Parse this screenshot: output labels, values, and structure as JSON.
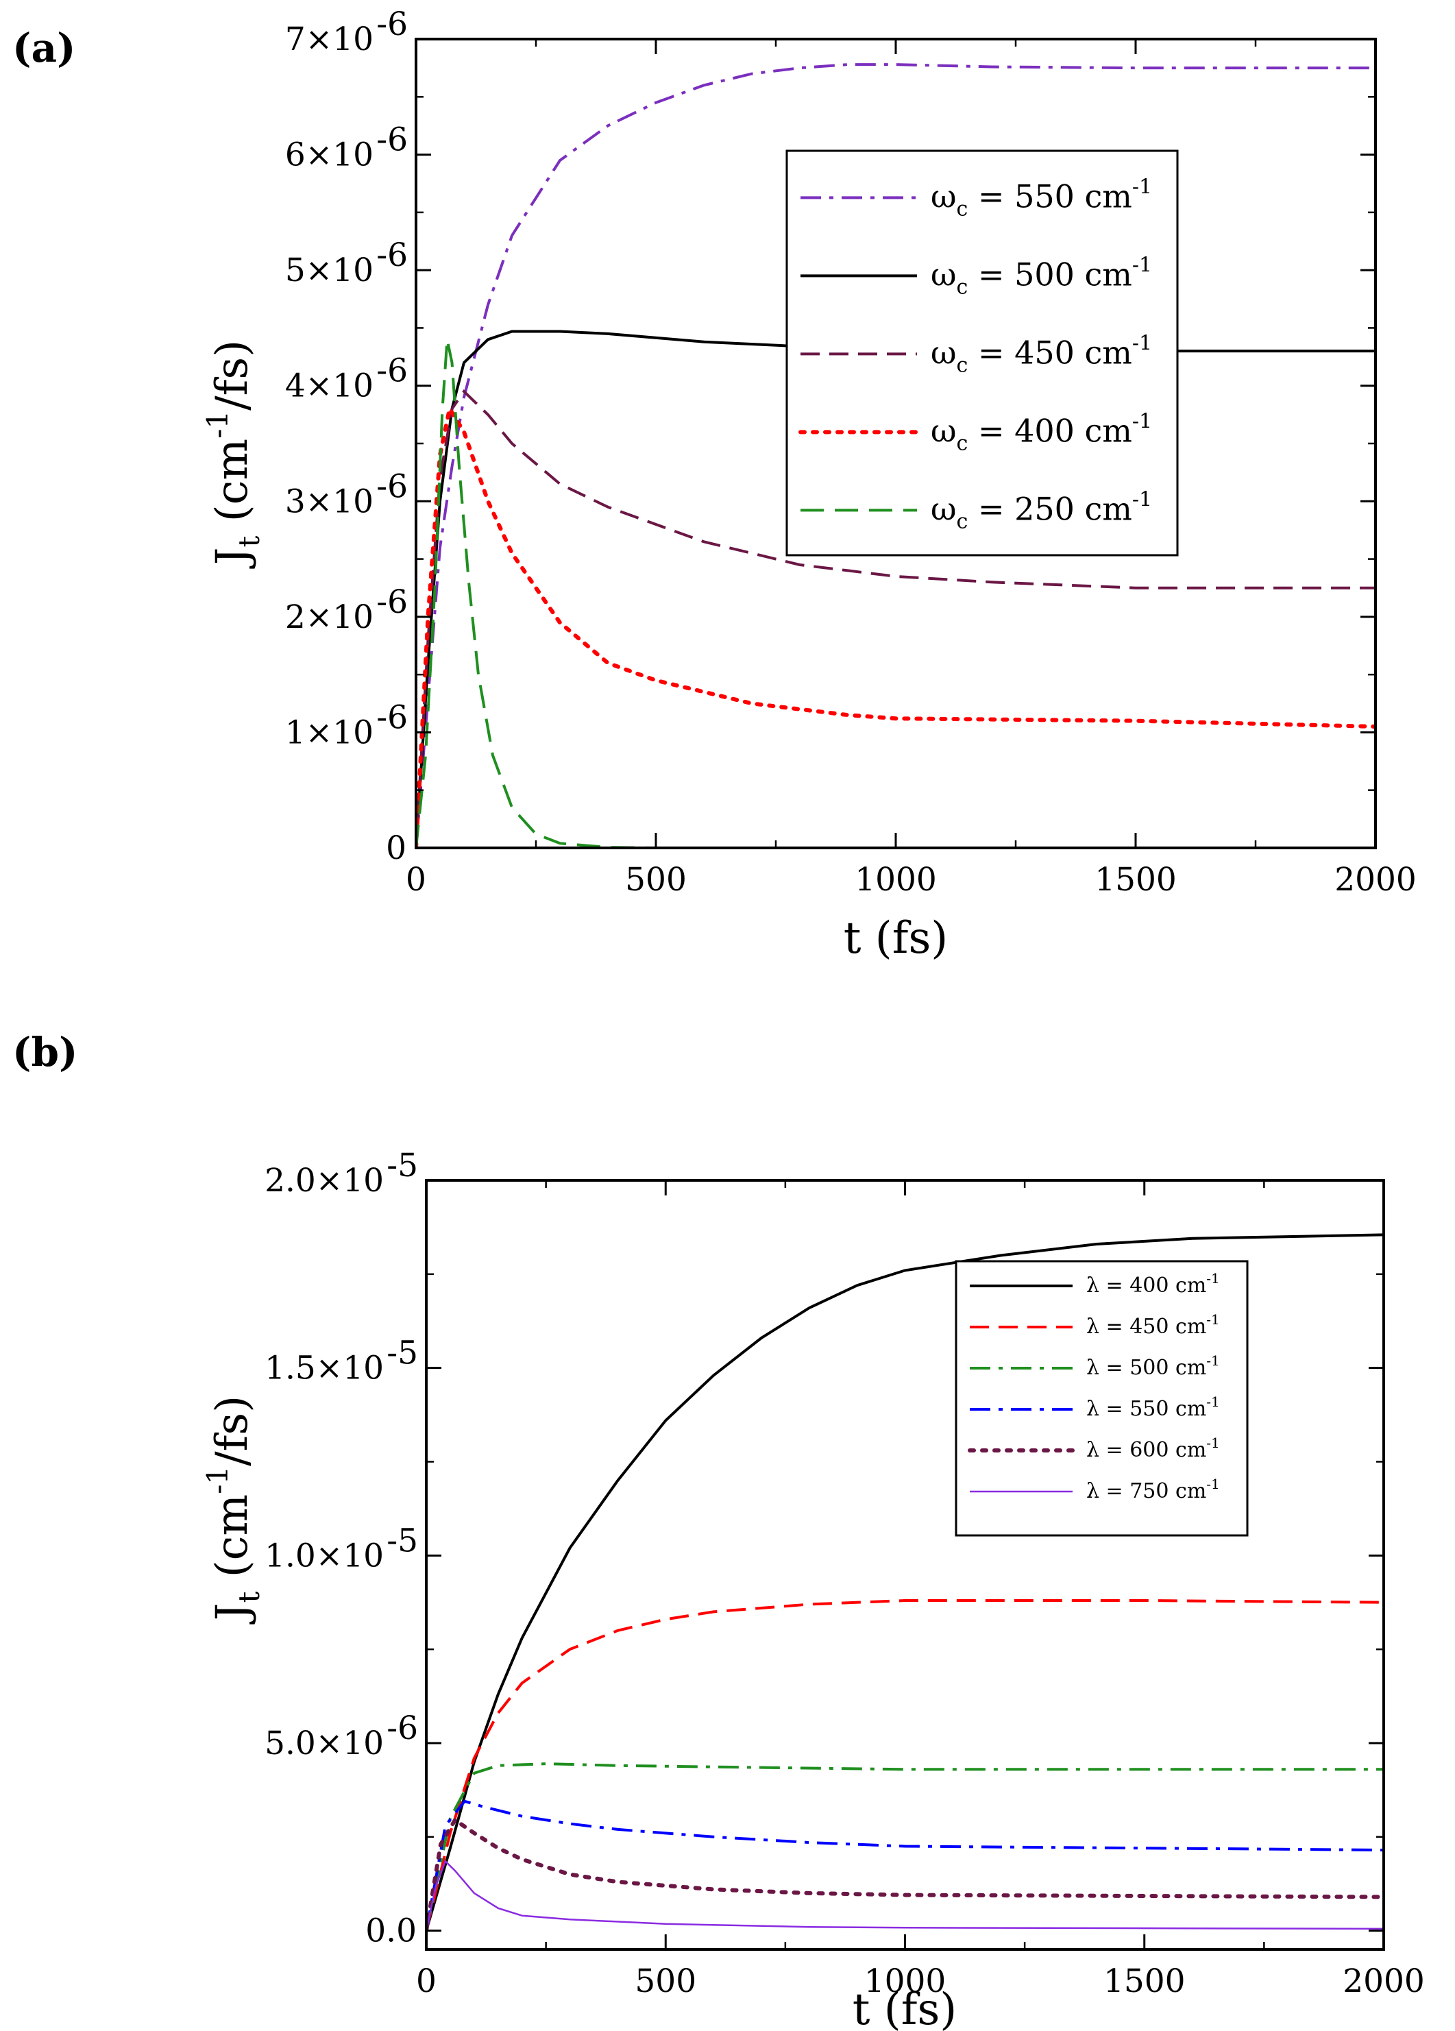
{
  "chart_data": [
    {
      "type": "line",
      "panel_label": "(a)",
      "xlabel": "t (fs)",
      "ylabel": {
        "base": "J",
        "sub": "t",
        "rest": " (cm",
        "sup": "-1",
        "tail": "/fs)"
      },
      "xlim": [
        0,
        2000
      ],
      "ylim": [
        0,
        7e-06
      ],
      "xticks": [
        {
          "value": 0,
          "label": "0"
        },
        {
          "value": 500,
          "label": "500"
        },
        {
          "value": 1000,
          "label": "1000"
        },
        {
          "value": 1500,
          "label": "1500"
        },
        {
          "value": 2000,
          "label": "2000"
        }
      ],
      "yticks": [
        {
          "value": 0,
          "label": "0",
          "exp": ""
        },
        {
          "value": 1e-06,
          "label": "1×10",
          "exp": "-6"
        },
        {
          "value": 2e-06,
          "label": "2×10",
          "exp": "-6"
        },
        {
          "value": 3e-06,
          "label": "3×10",
          "exp": "-6"
        },
        {
          "value": 4e-06,
          "label": "4×10",
          "exp": "-6"
        },
        {
          "value": 5e-06,
          "label": "5×10",
          "exp": "-6"
        },
        {
          "value": 6e-06,
          "label": "6×10",
          "exp": "-6"
        },
        {
          "value": 7e-06,
          "label": "7×10",
          "exp": "-6"
        }
      ],
      "legend_position": "top-right",
      "series": [
        {
          "name": "550",
          "legend": {
            "sym": "ω",
            "sub": "c",
            "text": " = 550 cm",
            "sup": "-1"
          },
          "color": "#7b2fbe",
          "style": "dashdot",
          "points": [
            [
              0,
              0
            ],
            [
              25,
              1.3e-06
            ],
            [
              50,
              2.6e-06
            ],
            [
              75,
              3.3e-06
            ],
            [
              100,
              3.9e-06
            ],
            [
              150,
              4.7e-06
            ],
            [
              200,
              5.3e-06
            ],
            [
              300,
              5.95e-06
            ],
            [
              400,
              6.25e-06
            ],
            [
              500,
              6.45e-06
            ],
            [
              600,
              6.6e-06
            ],
            [
              700,
              6.7e-06
            ],
            [
              800,
              6.75e-06
            ],
            [
              900,
              6.78e-06
            ],
            [
              1000,
              6.78e-06
            ],
            [
              1200,
              6.76e-06
            ],
            [
              1500,
              6.75e-06
            ],
            [
              2000,
              6.75e-06
            ]
          ]
        },
        {
          "name": "500",
          "legend": {
            "sym": "ω",
            "sub": "c",
            "text": " = 500 cm",
            "sup": "-1"
          },
          "color": "#000000",
          "style": "solid",
          "points": [
            [
              0,
              0
            ],
            [
              25,
              1.6e-06
            ],
            [
              50,
              3e-06
            ],
            [
              75,
              3.8e-06
            ],
            [
              100,
              4.2e-06
            ],
            [
              150,
              4.4e-06
            ],
            [
              200,
              4.47e-06
            ],
            [
              300,
              4.47e-06
            ],
            [
              400,
              4.45e-06
            ],
            [
              600,
              4.38e-06
            ],
            [
              800,
              4.34e-06
            ],
            [
              1000,
              4.3e-06
            ],
            [
              1500,
              4.3e-06
            ],
            [
              2000,
              4.3e-06
            ]
          ]
        },
        {
          "name": "450",
          "legend": {
            "sym": "ω",
            "sub": "c",
            "text": " = 450 cm",
            "sup": "-1"
          },
          "color": "#6b1745",
          "style": "dash",
          "points": [
            [
              0,
              0
            ],
            [
              25,
              1.8e-06
            ],
            [
              50,
              3.2e-06
            ],
            [
              75,
              3.8e-06
            ],
            [
              100,
              3.95e-06
            ],
            [
              150,
              3.75e-06
            ],
            [
              200,
              3.5e-06
            ],
            [
              300,
              3.15e-06
            ],
            [
              400,
              2.95e-06
            ],
            [
              500,
              2.8e-06
            ],
            [
              600,
              2.65e-06
            ],
            [
              700,
              2.55e-06
            ],
            [
              800,
              2.45e-06
            ],
            [
              900,
              2.4e-06
            ],
            [
              1000,
              2.35e-06
            ],
            [
              1200,
              2.3e-06
            ],
            [
              1500,
              2.25e-06
            ],
            [
              2000,
              2.25e-06
            ]
          ]
        },
        {
          "name": "400",
          "legend": {
            "sym": "ω",
            "sub": "c",
            "text": " = 400 cm",
            "sup": "-1"
          },
          "color": "#ff0000",
          "style": "dot",
          "points": [
            [
              0,
              0
            ],
            [
              25,
              2e-06
            ],
            [
              50,
              3.4e-06
            ],
            [
              70,
              3.8e-06
            ],
            [
              100,
              3.6e-06
            ],
            [
              150,
              3e-06
            ],
            [
              200,
              2.55e-06
            ],
            [
              300,
              1.95e-06
            ],
            [
              400,
              1.6e-06
            ],
            [
              500,
              1.45e-06
            ],
            [
              600,
              1.35e-06
            ],
            [
              700,
              1.25e-06
            ],
            [
              800,
              1.2e-06
            ],
            [
              900,
              1.15e-06
            ],
            [
              1000,
              1.12e-06
            ],
            [
              1500,
              1.1e-06
            ],
            [
              2000,
              1.05e-06
            ]
          ]
        },
        {
          "name": "250",
          "legend": {
            "sym": "ω",
            "sub": "c",
            "text": " = 250 cm",
            "sup": "-1"
          },
          "color": "#1f8f1f",
          "style": "longdash",
          "points": [
            [
              0,
              0
            ],
            [
              20,
              8e-07
            ],
            [
              40,
              2.3e-06
            ],
            [
              55,
              3.8e-06
            ],
            [
              65,
              4.4e-06
            ],
            [
              75,
              4.2e-06
            ],
            [
              90,
              3.3e-06
            ],
            [
              110,
              2.3e-06
            ],
            [
              130,
              1.5e-06
            ],
            [
              160,
              8e-07
            ],
            [
              200,
              3.5e-07
            ],
            [
              250,
              1.2e-07
            ],
            [
              300,
              4e-08
            ],
            [
              400,
              5e-09
            ],
            [
              500,
              0
            ],
            [
              2000,
              0
            ]
          ]
        }
      ]
    },
    {
      "type": "line",
      "panel_label": "(b)",
      "xlabel": "t (fs)",
      "ylabel": {
        "base": "J",
        "sub": "t",
        "rest": " (cm",
        "sup": "-1",
        "tail": "/fs)"
      },
      "xlim": [
        0,
        2000
      ],
      "ylim": [
        -5e-07,
        2e-05
      ],
      "xticks": [
        {
          "value": 0,
          "label": "0"
        },
        {
          "value": 500,
          "label": "500"
        },
        {
          "value": 1000,
          "label": "1000"
        },
        {
          "value": 1500,
          "label": "1500"
        },
        {
          "value": 2000,
          "label": "2000"
        }
      ],
      "yticks": [
        {
          "value": 0,
          "label": "0.0",
          "exp": ""
        },
        {
          "value": 5e-06,
          "label": "5.0×10",
          "exp": "-6"
        },
        {
          "value": 1e-05,
          "label": "1.0×10",
          "exp": "-5"
        },
        {
          "value": 1.5e-05,
          "label": "1.5×10",
          "exp": "-5"
        },
        {
          "value": 2e-05,
          "label": "2.0×10",
          "exp": "-5"
        }
      ],
      "legend_position": "top-right",
      "series": [
        {
          "name": "400",
          "legend": {
            "sym": "λ",
            "sub": "",
            "text": " = 400 cm",
            "sup": "-1"
          },
          "color": "#000000",
          "style": "solid",
          "points": [
            [
              0,
              0
            ],
            [
              50,
              2.2e-06
            ],
            [
              100,
              4.5e-06
            ],
            [
              150,
              6.3e-06
            ],
            [
              200,
              7.8e-06
            ],
            [
              300,
              1.02e-05
            ],
            [
              400,
              1.2e-05
            ],
            [
              500,
              1.36e-05
            ],
            [
              600,
              1.48e-05
            ],
            [
              700,
              1.58e-05
            ],
            [
              800,
              1.66e-05
            ],
            [
              900,
              1.72e-05
            ],
            [
              1000,
              1.76e-05
            ],
            [
              1200,
              1.8e-05
            ],
            [
              1400,
              1.83e-05
            ],
            [
              1600,
              1.845e-05
            ],
            [
              1800,
              1.85e-05
            ],
            [
              2000,
              1.855e-05
            ]
          ]
        },
        {
          "name": "450",
          "legend": {
            "sym": "λ",
            "sub": "",
            "text": " = 450 cm",
            "sup": "-1"
          },
          "color": "#ff0000",
          "style": "dash",
          "points": [
            [
              0,
              0
            ],
            [
              50,
              2.6e-06
            ],
            [
              100,
              4.6e-06
            ],
            [
              150,
              5.8e-06
            ],
            [
              200,
              6.6e-06
            ],
            [
              300,
              7.5e-06
            ],
            [
              400,
              8e-06
            ],
            [
              500,
              8.3e-06
            ],
            [
              600,
              8.5e-06
            ],
            [
              800,
              8.7e-06
            ],
            [
              1000,
              8.8e-06
            ],
            [
              1500,
              8.8e-06
            ],
            [
              2000,
              8.75e-06
            ]
          ]
        },
        {
          "name": "500",
          "legend": {
            "sym": "λ",
            "sub": "",
            "text": " = 500 cm",
            "sup": "-1"
          },
          "color": "#1f8f1f",
          "style": "dashdot",
          "points": [
            [
              0,
              0
            ],
            [
              50,
              3e-06
            ],
            [
              100,
              4.2e-06
            ],
            [
              150,
              4.4e-06
            ],
            [
              250,
              4.45e-06
            ],
            [
              400,
              4.4e-06
            ],
            [
              700,
              4.35e-06
            ],
            [
              1000,
              4.3e-06
            ],
            [
              2000,
              4.3e-06
            ]
          ]
        },
        {
          "name": "550",
          "legend": {
            "sym": "λ",
            "sub": "",
            "text": " = 550 cm",
            "sup": "-1"
          },
          "color": "#0000ff",
          "style": "dashdot",
          "points": [
            [
              0,
              0
            ],
            [
              40,
              2.8e-06
            ],
            [
              80,
              3.45e-06
            ],
            [
              120,
              3.3e-06
            ],
            [
              200,
              3.05e-06
            ],
            [
              300,
              2.85e-06
            ],
            [
              400,
              2.7e-06
            ],
            [
              600,
              2.5e-06
            ],
            [
              800,
              2.35e-06
            ],
            [
              1000,
              2.25e-06
            ],
            [
              1500,
              2.2e-06
            ],
            [
              2000,
              2.15e-06
            ]
          ]
        },
        {
          "name": "600",
          "legend": {
            "sym": "λ",
            "sub": "",
            "text": " = 600 cm",
            "sup": "-1"
          },
          "color": "#6b1745",
          "style": "dot",
          "points": [
            [
              0,
              0
            ],
            [
              30,
              2.3e-06
            ],
            [
              60,
              2.95e-06
            ],
            [
              100,
              2.6e-06
            ],
            [
              150,
              2.2e-06
            ],
            [
              200,
              1.9e-06
            ],
            [
              300,
              1.5e-06
            ],
            [
              400,
              1.3e-06
            ],
            [
              600,
              1.1e-06
            ],
            [
              800,
              1e-06
            ],
            [
              1000,
              9.5e-07
            ],
            [
              2000,
              9e-07
            ]
          ]
        },
        {
          "name": "750",
          "legend": {
            "sym": "λ",
            "sub": "",
            "text": " = 750 cm",
            "sup": "-1"
          },
          "color": "#8a2be2",
          "style": "thin",
          "points": [
            [
              0,
              0
            ],
            [
              20,
              1.2e-06
            ],
            [
              40,
              1.85e-06
            ],
            [
              60,
              1.6e-06
            ],
            [
              100,
              1e-06
            ],
            [
              150,
              6e-07
            ],
            [
              200,
              4e-07
            ],
            [
              300,
              3e-07
            ],
            [
              500,
              1.8e-07
            ],
            [
              800,
              1e-07
            ],
            [
              1000,
              8e-08
            ],
            [
              2000,
              5e-08
            ]
          ]
        }
      ]
    }
  ]
}
